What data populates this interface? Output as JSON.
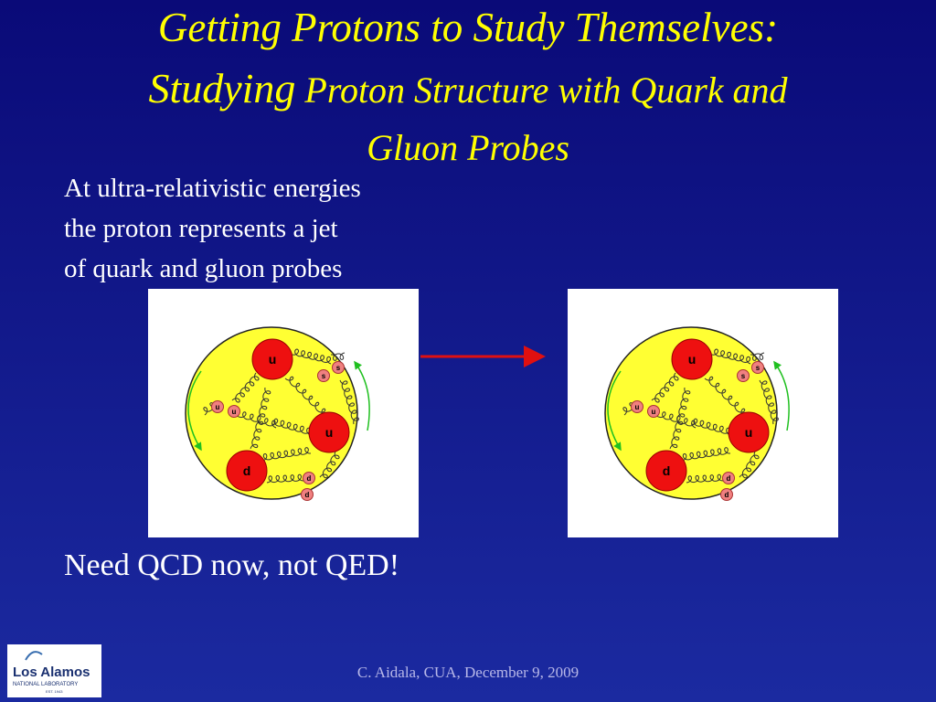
{
  "title": {
    "line1": "Getting Protons to Study Themselves:",
    "line2_lead": "Studying",
    "line2_rest": "Proton Structure with Quark and",
    "line3": "Gluon Probes"
  },
  "body": {
    "lines": [
      "At ultra-relativistic energies",
      "the proton represents a jet",
      "of quark and gluon probes"
    ],
    "conclusion": "Need QCD now, not QED!"
  },
  "diagrams": [
    {
      "valence": [
        "u",
        "u",
        "d"
      ],
      "sea": [
        "s",
        "s",
        "u",
        "u",
        "d",
        "d"
      ]
    },
    {
      "valence": [
        "u",
        "u",
        "d"
      ],
      "sea": [
        "s",
        "s",
        "u",
        "u",
        "d",
        "d"
      ]
    }
  ],
  "footer": "C. Aidala, CUA, December 9, 2009",
  "logo": {
    "name": "Los Alamos",
    "sub": "NATIONAL LABORATORY",
    "est": "EST. 1943"
  }
}
